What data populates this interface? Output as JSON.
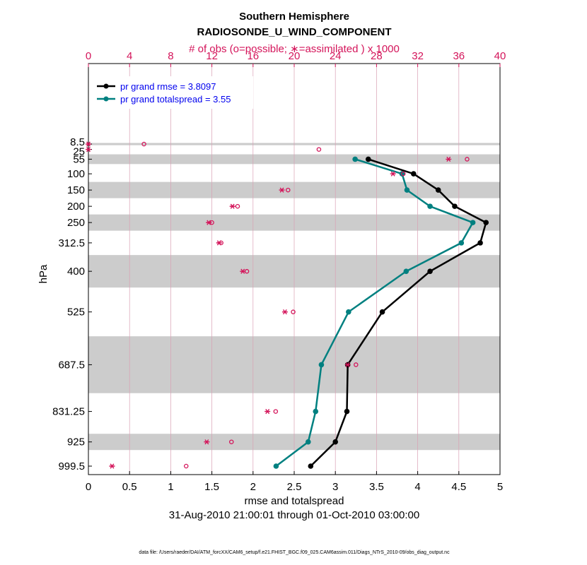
{
  "chart_data": {
    "type": "line",
    "title": "Southern Hemisphere",
    "subtitle": "RADIOSONDE_U_WIND_COMPONENT",
    "top_axis_label": "# of obs (o=possible; ∗=assimilated ) x 1000",
    "xlabel": "rmse and totalspread",
    "ylabel": "hPa",
    "date_range": "31-Aug-2010 21:00:01 through 01-Oct-2010 03:00:00",
    "footnote": "data file: /Users/raeder/DAI/ATM_forcXX/CAM6_setup/f.e21.FHIST_BGC.f09_025.CAM6assim.011/Diags_NTrS_2010-09/obs_diag_output.nc",
    "xlim": [
      0,
      5
    ],
    "x_ticks": [
      "0",
      "0.5",
      "1",
      "1.5",
      "2",
      "2.5",
      "3",
      "3.5",
      "4",
      "4.5",
      "5"
    ],
    "top_xlim": [
      0,
      40
    ],
    "top_ticks": [
      "0",
      "4",
      "8",
      "12",
      "16",
      "20",
      "24",
      "28",
      "32",
      "36",
      "40"
    ],
    "levels": [
      8.5,
      25,
      55,
      100,
      150,
      200,
      250,
      312.5,
      400,
      525,
      687.5,
      831.25,
      925,
      999.5
    ],
    "level_labels": [
      "8.5",
      "25",
      "55",
      "100",
      "150",
      "200",
      "250",
      "312.5",
      "400",
      "525",
      "687.5",
      "831.25",
      "925",
      "999.5"
    ],
    "shaded_bands": [
      [
        5,
        12
      ],
      [
        40,
        70
      ],
      [
        125,
        175
      ],
      [
        225,
        275
      ],
      [
        350,
        450
      ],
      [
        600,
        775
      ],
      [
        900,
        950
      ]
    ],
    "series": [
      {
        "name": "pr grand rmse",
        "legend": "pr grand rmse = 3.8097",
        "color": "#000000",
        "points": [
          [
            3.4,
            55
          ],
          [
            3.95,
            100
          ],
          [
            4.25,
            150
          ],
          [
            4.45,
            200
          ],
          [
            4.83,
            250
          ],
          [
            4.76,
            312.5
          ],
          [
            4.15,
            400
          ],
          [
            3.57,
            525
          ],
          [
            3.15,
            687.5
          ],
          [
            3.14,
            831.25
          ],
          [
            3.0,
            925
          ],
          [
            2.7,
            999.5
          ]
        ]
      },
      {
        "name": "pr grand totalspread",
        "legend": "pr grand totalspread = 3.55",
        "color": "#008080",
        "points": [
          [
            3.24,
            55
          ],
          [
            3.81,
            100
          ],
          [
            3.87,
            150
          ],
          [
            4.15,
            200
          ],
          [
            4.67,
            250
          ],
          [
            4.53,
            312.5
          ],
          [
            3.86,
            400
          ],
          [
            3.16,
            525
          ],
          [
            2.83,
            687.5
          ],
          [
            2.76,
            831.25
          ],
          [
            2.67,
            925
          ],
          [
            2.28,
            999.5
          ]
        ]
      }
    ],
    "obs_counts": {
      "unit": "thousands",
      "color": "#d4145a",
      "possible": [
        [
          5.4,
          8.5
        ],
        [
          22.4,
          25
        ],
        [
          36.8,
          55
        ],
        [
          30.6,
          100
        ],
        [
          19.4,
          150
        ],
        [
          14.5,
          200
        ],
        [
          12.0,
          250
        ],
        [
          12.9,
          312.5
        ],
        [
          15.4,
          400
        ],
        [
          19.9,
          525
        ],
        [
          26.0,
          687.5
        ],
        [
          18.2,
          831.25
        ],
        [
          13.9,
          925
        ],
        [
          9.5,
          999.5
        ]
      ],
      "assimilated": [
        [
          0.0,
          8.5
        ],
        [
          0.0,
          25
        ],
        [
          35.0,
          55
        ],
        [
          29.6,
          100
        ],
        [
          18.8,
          150
        ],
        [
          14.0,
          200
        ],
        [
          11.7,
          250
        ],
        [
          12.7,
          312.5
        ],
        [
          15.0,
          400
        ],
        [
          19.1,
          525
        ],
        [
          25.2,
          687.5
        ],
        [
          17.4,
          831.25
        ],
        [
          11.5,
          925
        ],
        [
          2.3,
          999.5
        ]
      ]
    }
  }
}
